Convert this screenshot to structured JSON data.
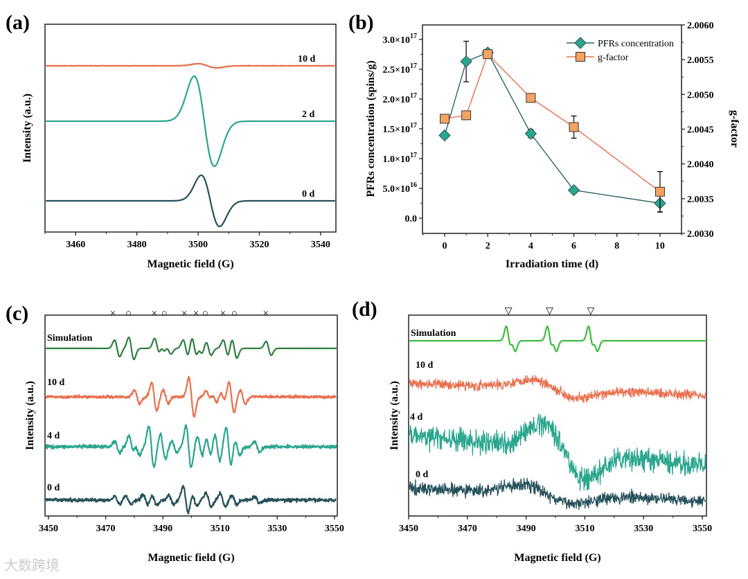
{
  "watermark": "大数跨境",
  "chart_data": [
    {
      "panel": "(a)",
      "type": "line",
      "xlabel": "Magnetic field (G)",
      "ylabel": "Intensity (a.u.)",
      "xlim": [
        3450,
        3545
      ],
      "xticks": [
        3460,
        3480,
        3500,
        3520,
        3540
      ],
      "series": [
        {
          "name": "10 d",
          "color": "#e8704f",
          "lines": [
            [
              3503,
              3,
              3
            ]
          ],
          "noise": 0.3
        },
        {
          "name": "2 d",
          "color": "#2aa58e",
          "lines": [
            [
              3502,
              3.3,
              65
            ]
          ],
          "noise": 0
        },
        {
          "name": "0 d",
          "color": "#25505a",
          "lines": [
            [
              3504,
              3,
              37
            ]
          ],
          "noise": 0
        }
      ]
    },
    {
      "panel": "(b)",
      "type": "line",
      "xlabel": "Irradiation time (d)",
      "ylabel": "PFRs concentration (spins/g)",
      "y2label": "g-factor",
      "xlim": [
        -1.03,
        11
      ],
      "xticks": [
        0,
        2,
        4,
        6,
        8,
        10
      ],
      "ylim": [
        -2.56e+16,
        3.244e+17
      ],
      "yticks": [
        0,
        5e+16,
        1e+17,
        1.5e+17,
        2e+17,
        2.5e+17,
        3e+17
      ],
      "ytick_labels": [
        "0.0",
        "5.0×10^16",
        "1.0×10^17",
        "1.5×10^17",
        "2.0×10^17",
        "2.5×10^17",
        "3.0×10^17"
      ],
      "y2lim": [
        2.003,
        2.006
      ],
      "y2ticks": [
        2.003,
        2.0035,
        2.004,
        2.0045,
        2.005,
        2.0055,
        2.006
      ],
      "y2tick_labels": [
        "2.0030",
        "2.0035",
        "2.0040",
        "2.0045",
        "2.0050",
        "2.0055",
        "2.0060"
      ],
      "legend": "top-right",
      "series": [
        {
          "name": "PFRs concentration",
          "axis": "left",
          "marker": "diamond",
          "color": "#2aa58e",
          "line_color": "#2d6466",
          "x": [
            0,
            1,
            2,
            4,
            6,
            10
          ],
          "y": [
            1.39e+17,
            2.63e+17,
            2.78e+17,
            1.42e+17,
            4.7e+16,
            2.5e+16
          ],
          "err": [
            3000000000000000.0,
            3.4e+16,
            3000000000000000.0,
            7000000000000000.0,
            2000000000000000.0,
            1.5e+16
          ]
        },
        {
          "name": "g-factor",
          "axis": "right",
          "marker": "square",
          "color": "#f4a460",
          "line_color": "#e8704f",
          "x": [
            0,
            1,
            2,
            4,
            6,
            10
          ],
          "y": [
            2.00465,
            2.0047,
            2.00558,
            2.00495,
            2.00453,
            2.0036
          ],
          "err": [
            3e-05,
            0,
            2e-05,
            4e-05,
            0.00016,
            0.00029
          ]
        }
      ]
    },
    {
      "panel": "(c)",
      "type": "line",
      "xlabel": "Magnetic field (G)",
      "ylabel": "Intensity (a.u.)",
      "xlim": [
        3448.8,
        3551
      ],
      "xticks": [
        3450,
        3470,
        3490,
        3510,
        3530,
        3550
      ],
      "markers": [
        {
          "symbol": "×",
          "x": 3472.5
        },
        {
          "symbol": "○",
          "x": 3478
        },
        {
          "symbol": "×",
          "x": 3487
        },
        {
          "symbol": "○",
          "x": 3490.5
        },
        {
          "symbol": "×",
          "x": 3497.5
        },
        {
          "symbol": "×",
          "x": 3501.6
        },
        {
          "symbol": "○",
          "x": 3504.8
        },
        {
          "symbol": "×",
          "x": 3511
        },
        {
          "symbol": "○",
          "x": 3515
        },
        {
          "symbol": "×",
          "x": 3526
        }
      ],
      "series": [
        {
          "name": "Simulation",
          "color": "#2e7d3e",
          "width": 0.9,
          "noise": 0,
          "lines": [
            [
              3474,
              12
            ],
            [
              3479,
              16
            ],
            [
              3488,
              14
            ],
            [
              3490,
              10
            ],
            [
              3492,
              8
            ],
            [
              3498,
              12
            ],
            [
              3501,
              16
            ],
            [
              3503,
              8
            ],
            [
              3506,
              10
            ],
            [
              3512,
              12
            ],
            [
              3515,
              14
            ],
            [
              3527,
              10
            ]
          ]
        },
        {
          "name": "10 d",
          "color": "#e8704f",
          "width": 0.9,
          "noise": 2,
          "lines": [
            [
              3481,
              10
            ],
            [
              3487,
              20
            ],
            [
              3491,
              10
            ],
            [
              3500,
              28
            ],
            [
              3506,
              8
            ],
            [
              3508,
              8
            ],
            [
              3511,
              6
            ],
            [
              3514,
              22
            ],
            [
              3518,
              10
            ]
          ]
        },
        {
          "name": "4 d",
          "color": "#2aa58e",
          "width": 0.9,
          "noise": 2.5,
          "lines": [
            [
              3474,
              8
            ],
            [
              3479,
              15
            ],
            [
              3481,
              12
            ],
            [
              3486,
              30
            ],
            [
              3490,
              18
            ],
            [
              3494,
              8
            ],
            [
              3499,
              30
            ],
            [
              3503,
              15
            ],
            [
              3506,
              14
            ],
            [
              3509,
              20
            ],
            [
              3513,
              28
            ],
            [
              3516,
              12
            ],
            [
              3523,
              8
            ]
          ]
        },
        {
          "name": "0 d",
          "color": "#25505a",
          "width": 0.9,
          "noise": 2.5,
          "lines": [
            [
              3474,
              6
            ],
            [
              3478,
              6
            ],
            [
              3484,
              8
            ],
            [
              3487,
              8
            ],
            [
              3493,
              6
            ],
            [
              3498,
              20
            ],
            [
              3501,
              8
            ],
            [
              3506,
              10
            ],
            [
              3511,
              10
            ],
            [
              3515,
              6
            ],
            [
              3523,
              5
            ]
          ]
        }
      ]
    },
    {
      "panel": "(d)",
      "type": "line",
      "xlabel": "Magnetic field (G)",
      "ylabel": "Intensity (a.u.)",
      "xlim": [
        3450,
        3551.4
      ],
      "xticks": [
        3450,
        3470,
        3490,
        3510,
        3530,
        3550
      ],
      "markers": [
        {
          "symbol": "▽",
          "x": 3484
        },
        {
          "symbol": "▽",
          "x": 3498
        },
        {
          "symbol": "▽",
          "x": 3512
        }
      ],
      "series": [
        {
          "name": "Simulation",
          "color": "#3cba3c",
          "width": 0.8,
          "noise": 0,
          "drift": 0,
          "lines": [
            [
              3484,
              20
            ],
            [
              3485.6,
              14
            ],
            [
              3498,
              20
            ],
            [
              3499.6,
              14
            ],
            [
              3512,
              20
            ],
            [
              3513.6,
              14
            ]
          ]
        },
        {
          "name": "10 d",
          "color": "#e8704f",
          "width": 8,
          "noise": 7,
          "drift": 17,
          "lines": [
            [
              3500,
              12
            ]
          ]
        },
        {
          "name": "4 d",
          "color": "#2aa58e",
          "width": 7,
          "noise": 16,
          "drift": 45,
          "lines": [
            [
              3503,
              38
            ]
          ]
        },
        {
          "name": "0 d",
          "color": "#25505a",
          "width": 8,
          "noise": 9,
          "drift": 18,
          "lines": [
            [
              3497,
              12
            ]
          ]
        }
      ]
    }
  ]
}
